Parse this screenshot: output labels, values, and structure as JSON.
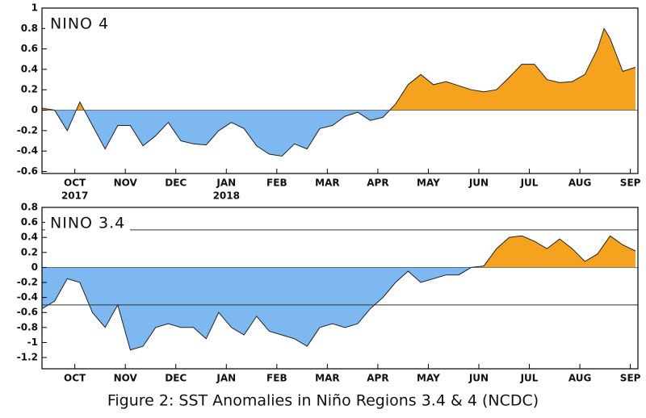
{
  "chart_data": [
    {
      "type": "anomaly-area",
      "title": "NINO 4",
      "x": [
        0.35,
        0.6,
        0.85,
        1.1,
        1.35,
        1.6,
        1.85,
        2.1,
        2.35,
        2.6,
        2.85,
        3.1,
        3.35,
        3.6,
        3.85,
        4.1,
        4.35,
        4.6,
        4.85,
        5.1,
        5.35,
        5.6,
        5.85,
        6.1,
        6.35,
        6.6,
        6.85,
        7.1,
        7.35,
        7.6,
        7.85,
        8.1,
        8.35,
        8.6,
        8.85,
        9.1,
        9.35,
        9.6,
        9.85,
        10.1,
        10.35,
        10.6,
        10.85,
        11.1,
        11.35,
        11.48,
        11.6,
        11.85,
        12.1
      ],
      "values": [
        0.02,
        0.0,
        -0.2,
        0.08,
        -0.15,
        -0.38,
        -0.15,
        -0.15,
        -0.35,
        -0.25,
        -0.12,
        -0.3,
        -0.33,
        -0.34,
        -0.2,
        -0.12,
        -0.18,
        -0.35,
        -0.43,
        -0.45,
        -0.33,
        -0.38,
        -0.18,
        -0.15,
        -0.06,
        -0.02,
        -0.1,
        -0.07,
        0.06,
        0.25,
        0.35,
        0.25,
        0.28,
        0.24,
        0.2,
        0.18,
        0.2,
        0.32,
        0.45,
        0.45,
        0.3,
        0.27,
        0.28,
        0.35,
        0.6,
        0.8,
        0.7,
        0.38,
        0.42
      ],
      "positive_color": "#f5a31f",
      "negative_color": "#7db9f0",
      "xlim": [
        0.35,
        12.15
      ],
      "xticks": [
        {
          "value": 1,
          "label": "OCT"
        },
        {
          "value": 2,
          "label": "NOV"
        },
        {
          "value": 3,
          "label": "DEC"
        },
        {
          "value": 4,
          "label": "JAN"
        },
        {
          "value": 5,
          "label": "FEB"
        },
        {
          "value": 6,
          "label": "MAR"
        },
        {
          "value": 7,
          "label": "APR"
        },
        {
          "value": 8,
          "label": "MAY"
        },
        {
          "value": 9,
          "label": "JUN"
        },
        {
          "value": 10,
          "label": "JUL"
        },
        {
          "value": 11,
          "label": "AUG"
        },
        {
          "value": 12,
          "label": "SEP"
        }
      ],
      "year_labels": [
        {
          "value": 1,
          "label": "2017"
        },
        {
          "value": 4,
          "label": "2018"
        }
      ],
      "ylim": [
        -0.62,
        1.0
      ],
      "yticks": [
        1,
        0.8,
        0.6,
        0.4,
        0.2,
        0,
        -0.2,
        -0.4,
        -0.6
      ]
    },
    {
      "type": "anomaly-area",
      "title": "NINO 3.4",
      "x": [
        0.35,
        0.6,
        0.85,
        1.1,
        1.35,
        1.6,
        1.85,
        2.1,
        2.35,
        2.6,
        2.85,
        3.1,
        3.35,
        3.6,
        3.85,
        4.1,
        4.35,
        4.6,
        4.85,
        5.1,
        5.35,
        5.6,
        5.85,
        6.1,
        6.35,
        6.6,
        6.85,
        7.1,
        7.35,
        7.6,
        7.85,
        8.1,
        8.35,
        8.6,
        8.85,
        9.1,
        9.35,
        9.6,
        9.85,
        10.1,
        10.35,
        10.6,
        10.85,
        11.1,
        11.35,
        11.6,
        11.85,
        12.1
      ],
      "values": [
        -0.55,
        -0.45,
        -0.15,
        -0.2,
        -0.6,
        -0.8,
        -0.5,
        -1.1,
        -1.05,
        -0.8,
        -0.75,
        -0.8,
        -0.8,
        -0.95,
        -0.6,
        -0.8,
        -0.9,
        -0.65,
        -0.85,
        -0.9,
        -0.95,
        -1.05,
        -0.8,
        -0.75,
        -0.8,
        -0.75,
        -0.55,
        -0.4,
        -0.2,
        -0.05,
        -0.2,
        -0.15,
        -0.1,
        -0.1,
        0.0,
        0.02,
        0.25,
        0.4,
        0.42,
        0.35,
        0.25,
        0.38,
        0.25,
        0.08,
        0.18,
        0.42,
        0.3,
        0.22
      ],
      "positive_color": "#f5a31f",
      "negative_color": "#7db9f0",
      "reference_lines": [
        0.5,
        -0.5
      ],
      "xlim": [
        0.35,
        12.15
      ],
      "xticks": [
        {
          "value": 1,
          "label": "OCT"
        },
        {
          "value": 2,
          "label": "NOV"
        },
        {
          "value": 3,
          "label": "DEC"
        },
        {
          "value": 4,
          "label": "JAN"
        },
        {
          "value": 5,
          "label": "FEB"
        },
        {
          "value": 6,
          "label": "MAR"
        },
        {
          "value": 7,
          "label": "APR"
        },
        {
          "value": 8,
          "label": "MAY"
        },
        {
          "value": 9,
          "label": "JUN"
        },
        {
          "value": 10,
          "label": "JUL"
        },
        {
          "value": 11,
          "label": "AUG"
        },
        {
          "value": 12,
          "label": "SEP"
        }
      ],
      "ylim": [
        -1.35,
        0.8
      ],
      "yticks": [
        0.8,
        0.6,
        0.4,
        0.2,
        0,
        -0.2,
        -0.4,
        -0.6,
        -0.8,
        -1,
        -1.2
      ]
    }
  ],
  "caption": "Figure 2: SST Anomalies in Niño Regions 3.4 & 4 (NCDC)"
}
